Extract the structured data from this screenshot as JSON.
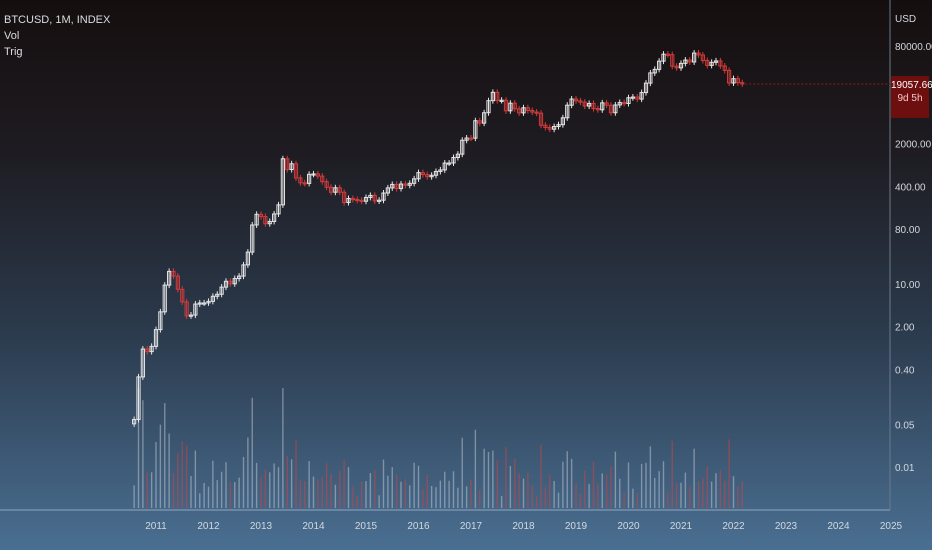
{
  "legend": {
    "symbol": "BTCUSD, 1M, INDEX",
    "indicator_1": "Vol",
    "indicator_2": "Trig"
  },
  "price_axis": {
    "currency": "USD",
    "ticks": [
      "80000.00",
      "2000.00",
      "400.00",
      "80.00",
      "10.00",
      "2.00",
      "0.40",
      "0.05",
      "0.01"
    ]
  },
  "last_price": {
    "value": "19057.66",
    "countdown": "9d 5h"
  },
  "colors": {
    "up": "#e6e6e6",
    "down": "#d23b3b",
    "badge": "#6e0f0f"
  },
  "chart_data": {
    "type": "candlestick",
    "interval": "1M",
    "y_scale": "log",
    "x_labels": [
      "2011",
      "2012",
      "2013",
      "2014",
      "2015",
      "2016",
      "2017",
      "2018",
      "2019",
      "2020",
      "2021",
      "2022",
      "2023",
      "2024",
      "2025"
    ],
    "closes": [
      0.06,
      0.3,
      0.86,
      0.78,
      0.95,
      1.79,
      3.5,
      9.6,
      16.1,
      13.5,
      8.2,
      5.1,
      3.0,
      3.1,
      4.7,
      4.9,
      4.9,
      5.2,
      6.3,
      6.8,
      8.9,
      11.1,
      10.1,
      12.3,
      13.5,
      20.6,
      33.4,
      93.0,
      139.0,
      128.0,
      97.5,
      106.2,
      141.0,
      198.7,
      1132.0,
      754.0,
      938.0,
      549.0,
      457.0,
      447.0,
      630.0,
      640.0,
      589.0,
      477.0,
      386.0,
      320.0,
      379.0,
      320.0,
      217.0,
      253.0,
      244.0,
      236.0,
      228.0,
      263.0,
      284.0,
      230.0,
      237.0,
      311.0,
      377.0,
      430.0,
      368.0,
      436.0,
      416.0,
      448.0,
      531.0,
      672.0,
      624.0,
      575.0,
      608.0,
      701.0,
      744.0,
      964.0,
      966.0,
      1189.0,
      1348.0,
      2280.0,
      2479.0,
      2465.0,
      4761.0,
      4349.0,
      6434.0,
      10143.0,
      13920.0,
      10224.0,
      10326.0,
      6923.0,
      9242.0,
      7463.0,
      6404.0,
      7765.0,
      7021.0,
      6610.0,
      6343.0,
      4016.0,
      3693.0,
      3458.0,
      3823.0,
      4105.0,
      5321.0,
      8558.0,
      10818.0,
      10086.0,
      9600.0,
      8293.0,
      9154.0,
      7546.0,
      7194.0,
      9351.0,
      8543.0,
      6440.0,
      8630.0,
      9455.0,
      9135.0,
      11352.0,
      11655.0,
      10780.0,
      13781.0,
      19698.0,
      28950.0,
      33108.0,
      45135.0,
      58803.0,
      57720.0,
      37332.0,
      35041.0,
      41490.0,
      47100.0,
      43788.0,
      61318.0,
      57005.0,
      46306.0,
      38483.0,
      43194.0,
      45538.0,
      37644.0,
      31793.0,
      19785.0,
      23307.0,
      20050.0,
      19057.66
    ]
  }
}
